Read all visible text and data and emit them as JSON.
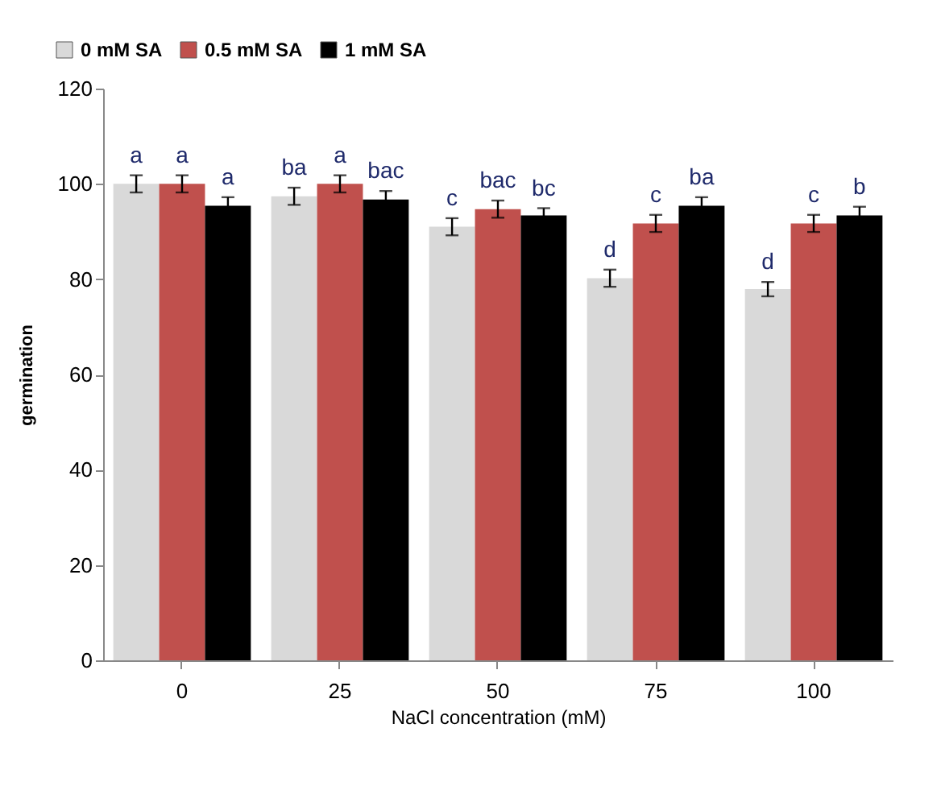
{
  "chart_data": {
    "type": "bar",
    "xlabel": "NaCl concentration (mM)",
    "ylabel": "germination",
    "categories": [
      "0",
      "25",
      "50",
      "75",
      "100"
    ],
    "series": [
      {
        "name": "0 mM SA",
        "color": "#d9d9d9",
        "values": [
          100,
          97.4,
          91,
          80.2,
          77.9
        ],
        "errors": [
          1.8,
          1.8,
          1.8,
          1.8,
          1.5
        ],
        "value_labels": [
          "a",
          "ba",
          "c",
          "d",
          "d"
        ]
      },
      {
        "name": "0.5 mM SA",
        "color": "#c0504d",
        "values": [
          100,
          100,
          94.7,
          91.7,
          91.7
        ],
        "errors": [
          1.8,
          1.8,
          1.8,
          1.8,
          1.8
        ],
        "value_labels": [
          "a",
          "a",
          "bac",
          "c",
          "c"
        ]
      },
      {
        "name": "1 mM SA",
        "color": "#000000",
        "values": [
          95.4,
          96.7,
          93.4,
          95.4,
          93.4
        ],
        "errors": [
          1.8,
          1.8,
          1.5,
          1.8,
          1.8
        ],
        "value_labels": [
          "a",
          "bac",
          "bc",
          "ba",
          "b"
        ]
      }
    ],
    "ylim": [
      0,
      120
    ],
    "yticks": [
      0,
      20,
      40,
      60,
      80,
      100,
      120
    ],
    "grid": false,
    "legend": "top left"
  }
}
